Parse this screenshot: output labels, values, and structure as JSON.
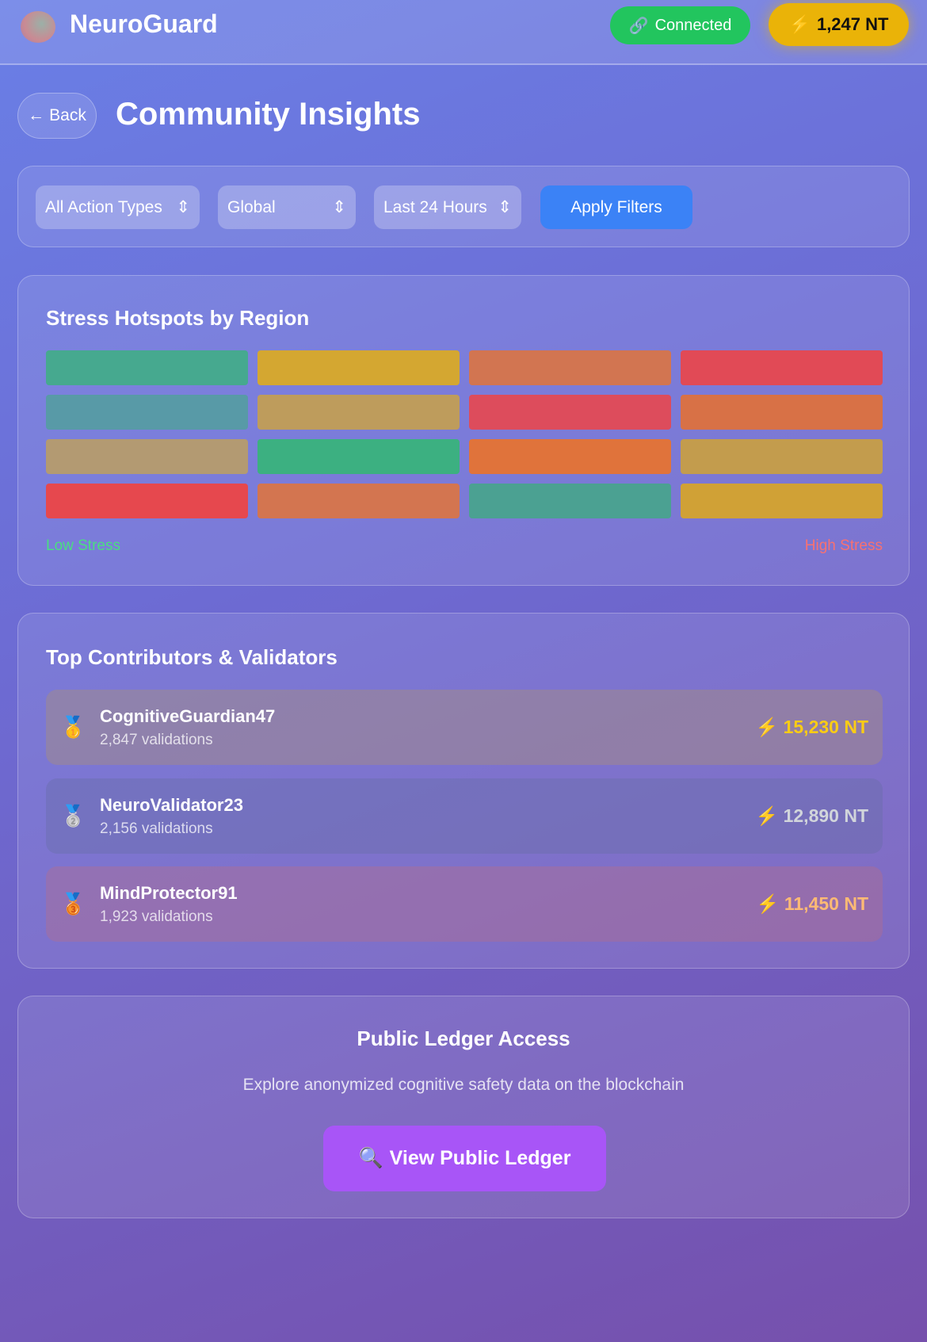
{
  "header": {
    "brand": "NeuroGuard",
    "connection_status": "Connected",
    "balance": "1,247 NT",
    "icons": {
      "logo": "brain-icon",
      "connection": "link-icon",
      "balance": "lightning-icon"
    }
  },
  "page": {
    "back_label": "Back",
    "title": "Community Insights"
  },
  "filters": {
    "action_type": "All Action Types",
    "region": "Global",
    "time_range": "Last 24 Hours",
    "apply_label": "Apply Filters"
  },
  "heatmap": {
    "title": "Stress Hotspots by Region",
    "legend_low": "Low Stress",
    "legend_high": "High Stress",
    "low_color": "#4ade80",
    "high_color": "#f87171",
    "cells": [
      "#46a98f",
      "#d4a731",
      "#d27551",
      "#e14a56",
      "#589aa7",
      "#be9c5c",
      "#dd4c5c",
      "#d87146",
      "#b39a72",
      "#3cb081",
      "#e0733b",
      "#c39c4d",
      "#e6484e",
      "#d37550",
      "#4ba192",
      "#d0a136"
    ]
  },
  "contributors": {
    "title": "Top Contributors & Validators",
    "items": [
      {
        "rank_icon": "gold-medal-icon",
        "medal": "🥇",
        "name": "CognitiveGuardian47",
        "validations": "2,847 validations",
        "amount": "15,230 NT",
        "amount_color": "#facc15",
        "bg": "rgba(180,150,100,0.35)"
      },
      {
        "rank_icon": "silver-medal-icon",
        "medal": "🥈",
        "name": "NeuroValidator23",
        "validations": "2,156 validations",
        "amount": "12,890 NT",
        "amount_color": "#d1d5db",
        "bg": "rgba(100,110,160,0.35)"
      },
      {
        "rank_icon": "bronze-medal-icon",
        "medal": "🥉",
        "name": "MindProtector91",
        "validations": "1,923 validations",
        "amount": "11,450 NT",
        "amount_color": "#fdba74",
        "bg": "rgba(190,110,130,0.35)"
      }
    ]
  },
  "ledger": {
    "title": "Public Ledger Access",
    "description": "Explore anonymized cognitive safety data on the blockchain",
    "button_label": "View Public Ledger",
    "button_icon": "magnifier-icon"
  }
}
